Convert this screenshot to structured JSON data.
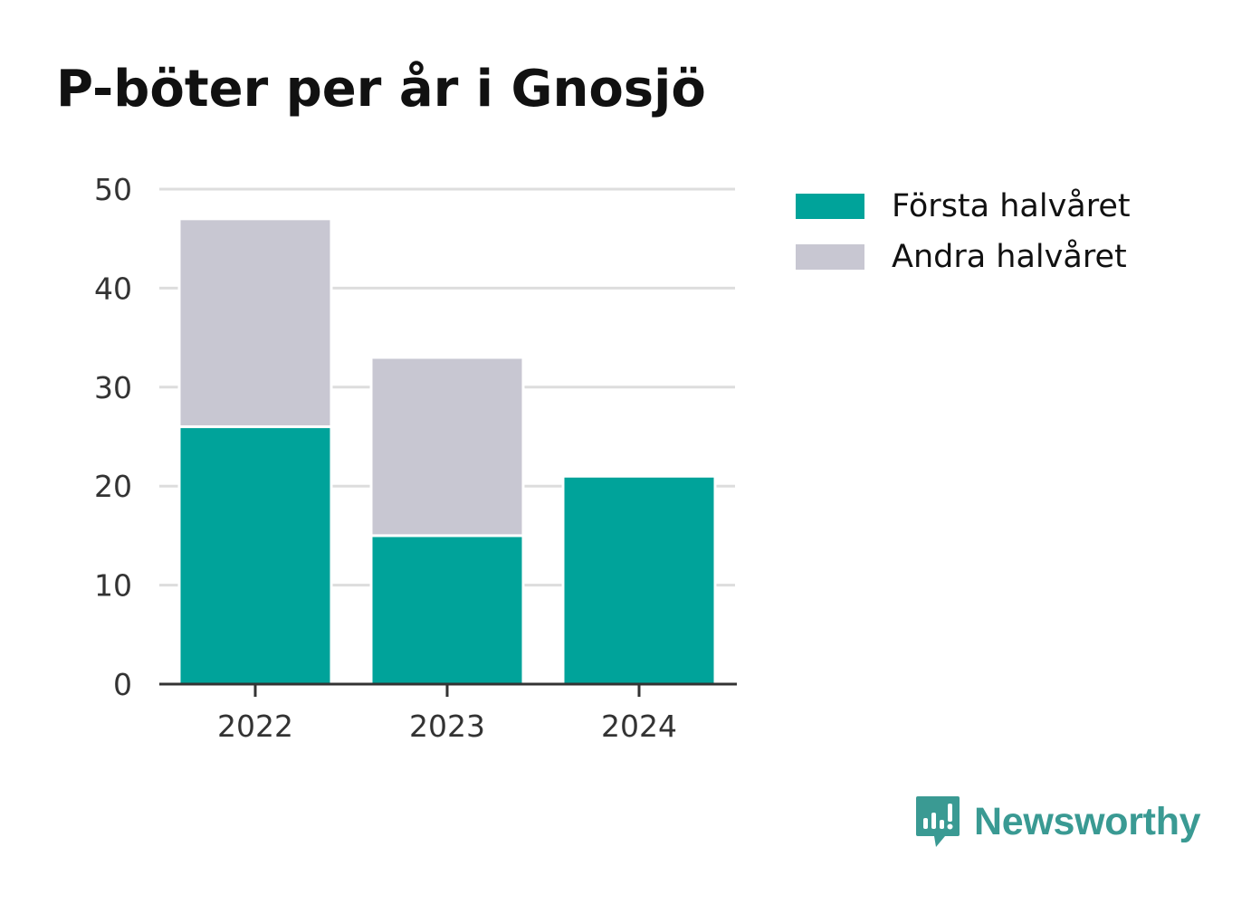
{
  "chart_data": {
    "type": "bar",
    "stacked": true,
    "title": "P-böter per år i Gnosjö",
    "categories": [
      "2022",
      "2023",
      "2024"
    ],
    "series": [
      {
        "name": "Första halvåret",
        "values": [
          26,
          15,
          21
        ],
        "color": "#00a39a"
      },
      {
        "name": "Andra halvåret",
        "values": [
          21,
          18,
          0
        ],
        "color": "#c8c7d2"
      }
    ],
    "ylim": [
      0,
      50
    ],
    "yticks": [
      0,
      10,
      20,
      30,
      40,
      50
    ],
    "grid": true,
    "legend_position": "right",
    "xlabel": "",
    "ylabel": ""
  },
  "brand": {
    "name": "Newsworthy",
    "color": "#3a9a93",
    "icon": "newsworthy-logo-icon"
  }
}
